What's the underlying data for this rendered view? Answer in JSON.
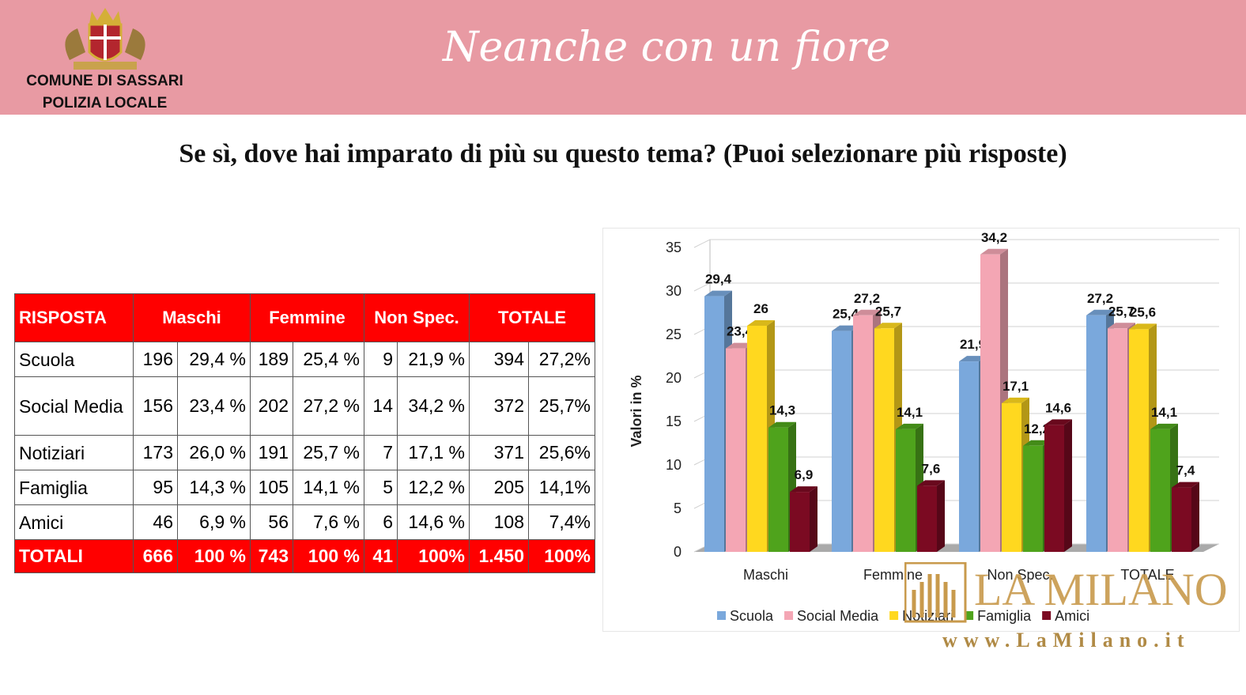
{
  "header": {
    "org_line1": "COMUNE DI SASSARI",
    "org_line2": "POLIZIA LOCALE",
    "campaign": "Neanche con un fiore"
  },
  "title": "Se sì, dove hai imparato di più su questo tema? (Puoi selezionare più risposte)",
  "table": {
    "header": [
      "RISPOSTA",
      "Maschi",
      "Femmine",
      "Non Spec.",
      "TOTALE"
    ],
    "rows": [
      [
        "Scuola",
        "196",
        "29,4 %",
        "189",
        "25,4 %",
        "9",
        "21,9 %",
        "394",
        "27,2%"
      ],
      [
        "Social Media",
        "156",
        "23,4 %",
        "202",
        "27,2 %",
        "14",
        "34,2 %",
        "372",
        "25,7%"
      ],
      [
        "Notiziari",
        "173",
        "26,0 %",
        "191",
        "25,7 %",
        "7",
        "17,1 %",
        "371",
        "25,6%"
      ],
      [
        "Famiglia",
        "95",
        "14,3 %",
        "105",
        "14,1 %",
        "5",
        "12,2 %",
        "205",
        "14,1%"
      ],
      [
        "Amici",
        "46",
        "6,9 %",
        "56",
        "7,6 %",
        "6",
        "14,6 %",
        "108",
        "7,4%"
      ]
    ],
    "total_row": [
      "TOTALI",
      "666",
      "100 %",
      "743",
      "100 %",
      "41",
      "100%",
      "1.450",
      "100%"
    ]
  },
  "chart_data": {
    "type": "bar",
    "y_label": "Valori in %",
    "categories": [
      "Maschi",
      "Femmine",
      "Non Spec.",
      "TOTALE"
    ],
    "ylim": [
      0,
      35
    ],
    "yticks": [
      0,
      5,
      10,
      15,
      20,
      25,
      30,
      35
    ],
    "legend": "bottom",
    "series": [
      {
        "name": "Scuola",
        "color": "#7aa8dc",
        "values": [
          29.4,
          25.4,
          21.9,
          27.2
        ],
        "value_labels": [
          "29,4",
          "25,4",
          "21,9",
          "27,2"
        ]
      },
      {
        "name": "Social Media",
        "color": "#f4a6b4",
        "values": [
          23.4,
          27.2,
          34.2,
          25.7
        ],
        "value_labels": [
          "23,4",
          "27,2",
          "34,2",
          "25,7"
        ]
      },
      {
        "name": "Notiziari",
        "color": "#ffd81f",
        "values": [
          26,
          25.7,
          17.1,
          25.6
        ],
        "value_labels": [
          "26",
          "25,7",
          "17,1",
          "25,6"
        ]
      },
      {
        "name": "Famiglia",
        "color": "#4fa31c",
        "values": [
          14.3,
          14.1,
          12.2,
          14.1
        ],
        "value_labels": [
          "14,3",
          "14,1",
          "12,2",
          "14,1"
        ]
      },
      {
        "name": "Amici",
        "color": "#7b0a22",
        "values": [
          6.9,
          7.6,
          14.6,
          7.4
        ],
        "value_labels": [
          "6,9",
          "7,6",
          "14,6",
          "7,4"
        ]
      }
    ]
  },
  "watermark": {
    "brand": "LA MILANO",
    "url": "www.LaMilano.it"
  }
}
